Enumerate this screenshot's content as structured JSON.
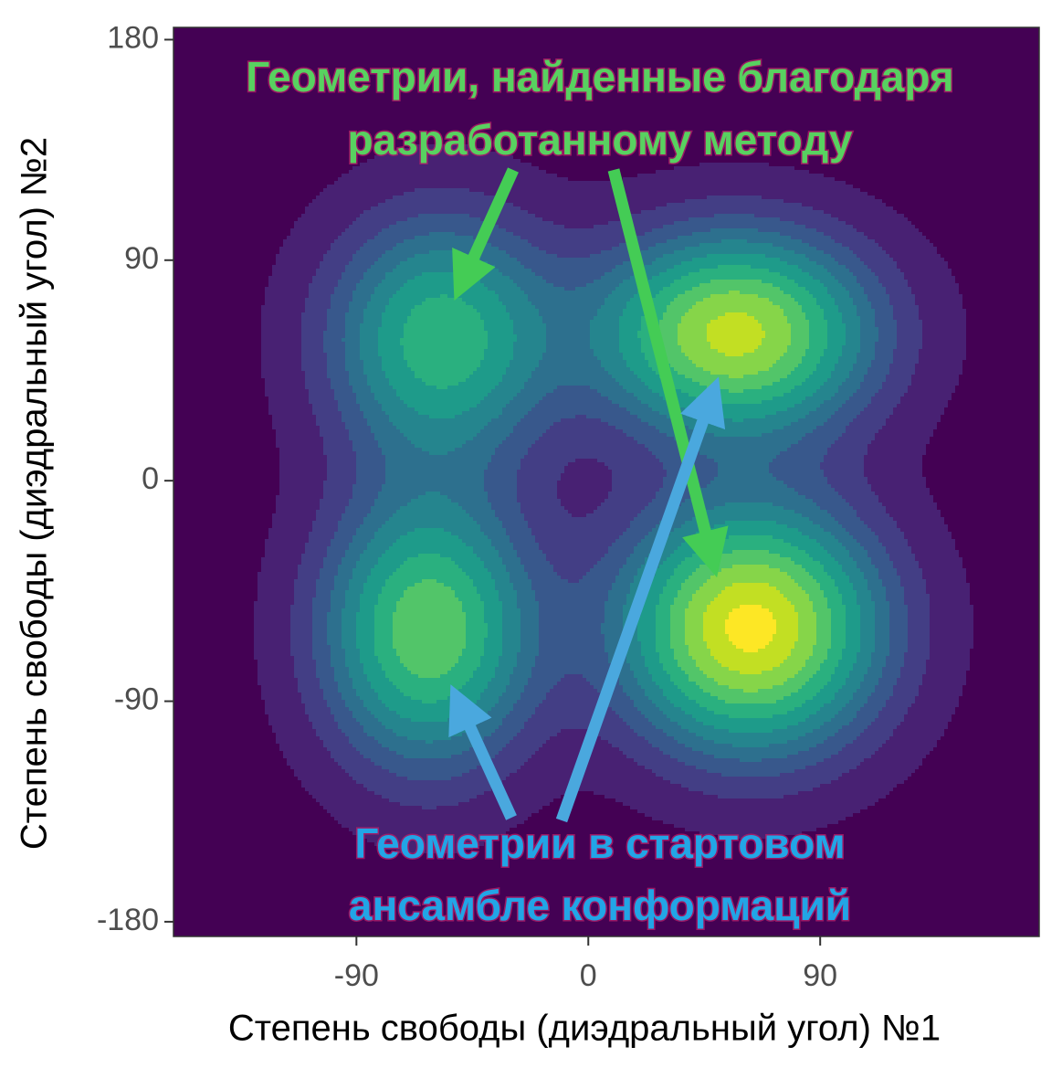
{
  "chart_data": {
    "type": "density",
    "xlabel": "Степень свободы (диэдральный угол) №1",
    "ylabel": "Степень свободы (диэдральный угол) №2",
    "xlim": [
      -161,
      175
    ],
    "ylim": [
      -186,
      185
    ],
    "xticks": [
      -90,
      0,
      90
    ],
    "yticks": [
      -180,
      -90,
      0,
      90,
      180
    ],
    "peaks": [
      {
        "x": -57,
        "y": 58,
        "sx": 30,
        "sy": 34,
        "w": 0.62
      },
      {
        "x": 57,
        "y": 60,
        "sx": 36,
        "sy": 28,
        "w": 0.9
      },
      {
        "x": -62,
        "y": -61,
        "sx": 28,
        "sy": 38,
        "w": 0.74
      },
      {
        "x": 63,
        "y": -60,
        "sx": 34,
        "sy": 34,
        "w": 1.0
      }
    ],
    "levels": [
      0.04,
      0.12,
      0.2,
      0.28,
      0.36,
      0.45,
      0.55,
      0.65,
      0.75,
      0.86,
      0.96
    ],
    "colors": [
      "#440154",
      "#482173",
      "#433e85",
      "#38588c",
      "#2d708e",
      "#25858e",
      "#1e9b8a",
      "#2ab07f",
      "#52c569",
      "#86d549",
      "#c2df23",
      "#fde725"
    ],
    "annotations": [
      {
        "lines": [
          "Геометрии, найденные благодаря",
          "разработанному методу"
        ],
        "color": "#58d160"
      },
      {
        "lines": [
          "Геометрии в стартовом",
          "ансамбле конформаций"
        ],
        "color": "#22a5e6"
      }
    ]
  }
}
